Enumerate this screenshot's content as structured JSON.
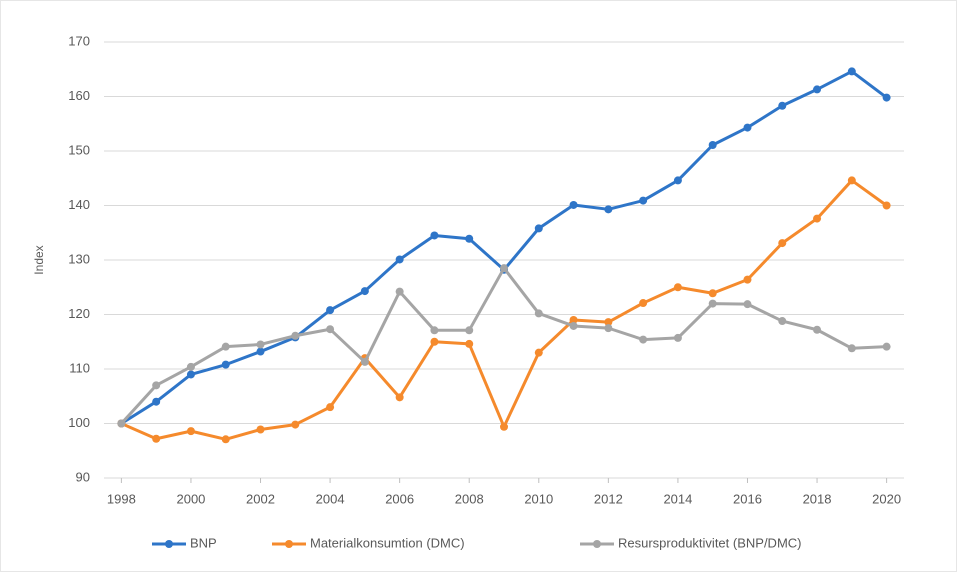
{
  "chart_data": {
    "type": "line",
    "ylabel": "Index",
    "x": [
      1998,
      1999,
      2000,
      2001,
      2002,
      2003,
      2004,
      2005,
      2006,
      2007,
      2008,
      2009,
      2010,
      2011,
      2012,
      2013,
      2014,
      2015,
      2016,
      2017,
      2018,
      2019,
      2020
    ],
    "xlim": [
      1997.5,
      2020.5
    ],
    "xticks": [
      1998,
      2000,
      2002,
      2004,
      2006,
      2008,
      2010,
      2012,
      2014,
      2016,
      2018,
      2020
    ],
    "ylim": [
      90,
      170
    ],
    "yticks": [
      90,
      100,
      110,
      120,
      130,
      140,
      150,
      160,
      170
    ],
    "grid": true,
    "legend": "bottom",
    "series": [
      {
        "name": "BNP",
        "color": "#2e75c8",
        "values": [
          100,
          104,
          109,
          110.8,
          113.2,
          115.8,
          120.8,
          124.3,
          130.1,
          134.5,
          133.9,
          128.2,
          135.8,
          140.1,
          139.3,
          140.9,
          144.6,
          151.1,
          154.3,
          158.3,
          161.3,
          164.6,
          159.8
        ]
      },
      {
        "name": "Materialkonsumtion (DMC)",
        "color": "#f58a2c",
        "values": [
          100,
          97.2,
          98.6,
          97.1,
          98.9,
          99.8,
          103,
          112,
          104.8,
          115,
          114.6,
          99.4,
          113,
          119,
          118.6,
          122.1,
          125,
          123.9,
          126.4,
          133.1,
          137.6,
          144.6,
          140
        ]
      },
      {
        "name": "Resursproduktivitet (BNP/DMC)",
        "color": "#a5a5a5",
        "values": [
          100,
          107,
          110.4,
          114.1,
          114.5,
          116.1,
          117.3,
          111.3,
          124.2,
          117.1,
          117.1,
          128.5,
          120.2,
          117.9,
          117.5,
          115.4,
          115.7,
          122,
          121.9,
          118.8,
          117.2,
          113.8,
          114.1
        ]
      }
    ]
  }
}
